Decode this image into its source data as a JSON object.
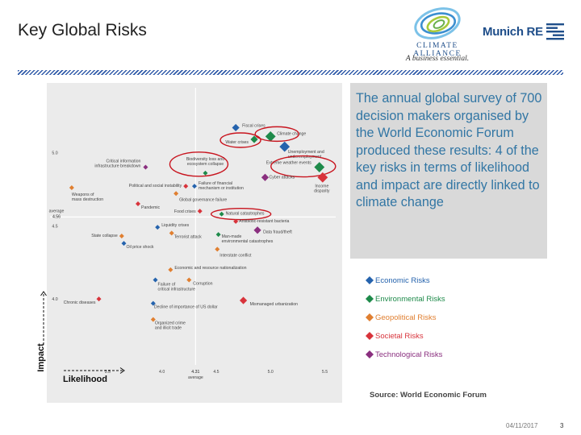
{
  "slide": {
    "title": "Key Global Risks",
    "date": "04/11/2017",
    "page_number": "3",
    "source": "Source: World Economic Forum",
    "callout": "The annual global survey of 700 decision makers organised by the World Economic Forum produced these results: 4 of the key risks in terms of likelihood and impact are directly linked to climate change"
  },
  "logos": {
    "climate_alliance": {
      "name": "CLIMATE ALLIANCE",
      "tagline": "A business essential."
    },
    "munich_re": {
      "name": "Munich RE"
    }
  },
  "axis_labels": {
    "impact": "Impact",
    "likelihood": "Likelihood"
  },
  "colors": {
    "economic": "#2563ad",
    "environmental": "#1e8a4a",
    "geopolitical": "#e07f30",
    "societal": "#d8333b",
    "technological": "#8a2f7f",
    "highlight_ring": "#c8141e",
    "callout_text": "#3276a4",
    "stripe": "#2f5aa8"
  },
  "legend": [
    {
      "category": "economic",
      "label": "Economic Risks"
    },
    {
      "category": "environmental",
      "label": "Environmental Risks"
    },
    {
      "category": "geopolitical",
      "label": "Geopolitical Risks"
    },
    {
      "category": "societal",
      "label": "Societal Risks"
    },
    {
      "category": "technological",
      "label": "Technological Risks"
    }
  ],
  "chart_data": {
    "type": "scatter",
    "title": "",
    "xlabel": "Likelihood",
    "ylabel": "Impact",
    "xlim": [
      3.0,
      5.6
    ],
    "ylim": [
      3.55,
      5.42
    ],
    "x_ticks": [
      "3.5",
      "4.0",
      "4.5",
      "5.0",
      "5.5"
    ],
    "y_ticks": [
      "4.0",
      "4.5",
      "5.0"
    ],
    "average": {
      "x": 4.31,
      "y": 4.56,
      "x_label": "4.31",
      "y_label": "4.56",
      "caption": "average"
    },
    "grid": false,
    "points": [
      {
        "label": "Fiscal crises",
        "x": 4.68,
        "y": 5.17,
        "category": "economic",
        "size": "medium",
        "highlighted": false
      },
      {
        "label": "Climate change",
        "x": 5.0,
        "y": 5.11,
        "category": "environmental",
        "size": "large",
        "highlighted": true
      },
      {
        "label": "Water crises",
        "x": 4.85,
        "y": 5.09,
        "category": "environmental",
        "size": "medium",
        "highlighted": true
      },
      {
        "label": "Unemployment and underemployment",
        "x": 5.13,
        "y": 5.04,
        "category": "economic",
        "size": "large",
        "highlighted": false
      },
      {
        "label": "Critical information infrastructure breakdown",
        "x": 3.85,
        "y": 4.9,
        "category": "technological",
        "size": "small",
        "highlighted": false
      },
      {
        "label": "Biodiversity loss and ecosystem collapse",
        "x": 4.4,
        "y": 4.86,
        "category": "environmental",
        "size": "small",
        "highlighted": true
      },
      {
        "label": "Extreme weather events",
        "x": 5.45,
        "y": 4.9,
        "category": "environmental",
        "size": "large",
        "highlighted": true
      },
      {
        "label": "Income disparity",
        "x": 5.48,
        "y": 4.83,
        "category": "societal",
        "size": "large",
        "highlighted": false
      },
      {
        "label": "Cyber attacks",
        "x": 4.95,
        "y": 4.83,
        "category": "technological",
        "size": "medium",
        "highlighted": false
      },
      {
        "label": "Political and social instability",
        "x": 4.22,
        "y": 4.77,
        "category": "societal",
        "size": "small",
        "highlighted": false
      },
      {
        "label": "Failure of financial mechanism or institution",
        "x": 4.3,
        "y": 4.77,
        "category": "economic",
        "size": "small",
        "highlighted": false
      },
      {
        "label": "Weapons of mass destruction",
        "x": 3.17,
        "y": 4.76,
        "category": "geopolitical",
        "size": "small",
        "highlighted": false
      },
      {
        "label": "Global governance failure",
        "x": 4.13,
        "y": 4.72,
        "category": "geopolitical",
        "size": "small",
        "highlighted": false
      },
      {
        "label": "Pandemic",
        "x": 3.78,
        "y": 4.65,
        "category": "societal",
        "size": "small",
        "highlighted": false
      },
      {
        "label": "Food crises",
        "x": 4.35,
        "y": 4.6,
        "category": "societal",
        "size": "small",
        "highlighted": false
      },
      {
        "label": "Natural catastrophes",
        "x": 4.55,
        "y": 4.58,
        "category": "environmental",
        "size": "small",
        "highlighted": true
      },
      {
        "label": "Antibiotic-resistant bacteria",
        "x": 4.68,
        "y": 4.53,
        "category": "societal",
        "size": "small",
        "highlighted": false
      },
      {
        "label": "Liquidity crises",
        "x": 3.96,
        "y": 4.49,
        "category": "economic",
        "size": "small",
        "highlighted": false
      },
      {
        "label": "Data fraud/theft",
        "x": 4.88,
        "y": 4.47,
        "category": "technological",
        "size": "medium",
        "highlighted": false
      },
      {
        "label": "Man-made environmental catastrophes",
        "x": 4.52,
        "y": 4.44,
        "category": "environmental",
        "size": "small",
        "highlighted": false
      },
      {
        "label": "State collapse",
        "x": 3.63,
        "y": 4.43,
        "category": "geopolitical",
        "size": "small",
        "highlighted": false
      },
      {
        "label": "Terrorist attack",
        "x": 4.09,
        "y": 4.45,
        "category": "geopolitical",
        "size": "small",
        "highlighted": false
      },
      {
        "label": "Oil price shock",
        "x": 3.65,
        "y": 4.38,
        "category": "economic",
        "size": "small",
        "highlighted": false
      },
      {
        "label": "Interstate conflict",
        "x": 4.51,
        "y": 4.34,
        "category": "geopolitical",
        "size": "small",
        "highlighted": false
      },
      {
        "label": "Economic and resource nationalization",
        "x": 4.08,
        "y": 4.2,
        "category": "geopolitical",
        "size": "small",
        "highlighted": false
      },
      {
        "label": "Failure of critical infrastructure",
        "x": 3.94,
        "y": 4.13,
        "category": "economic",
        "size": "small",
        "highlighted": false
      },
      {
        "label": "Corruption",
        "x": 4.25,
        "y": 4.13,
        "category": "geopolitical",
        "size": "small",
        "highlighted": false
      },
      {
        "label": "Chronic diseases",
        "x": 3.42,
        "y": 4.0,
        "category": "societal",
        "size": "small",
        "highlighted": false
      },
      {
        "label": "Decline of importance of US dollar",
        "x": 3.92,
        "y": 3.97,
        "category": "economic",
        "size": "small",
        "highlighted": false
      },
      {
        "label": "Mismanaged urbanization",
        "x": 4.75,
        "y": 3.99,
        "category": "societal",
        "size": "medium",
        "highlighted": false
      },
      {
        "label": "Organized crime and illicit trade",
        "x": 3.92,
        "y": 3.86,
        "category": "geopolitical",
        "size": "small",
        "highlighted": false
      }
    ]
  }
}
